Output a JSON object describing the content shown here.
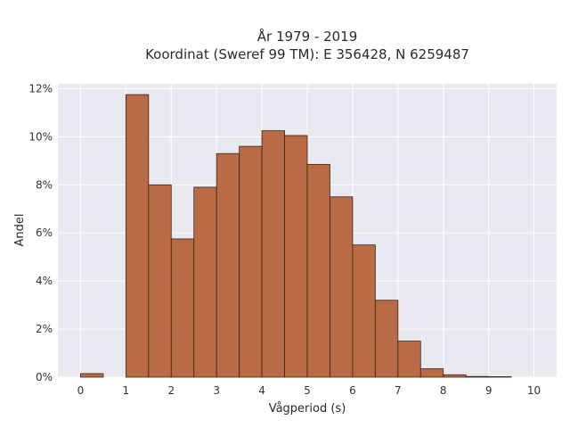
{
  "chart_data": {
    "type": "bar",
    "title": "År 1979 - 2019",
    "subtitle": "Koordinat (Sweref 99 TM): E 356428, N 6259487",
    "xlabel": "Vågperiod (s)",
    "ylabel": "Andel",
    "bin_width": 0.5,
    "bin_starts": [
      0,
      0.5,
      1,
      1.5,
      2,
      2.5,
      3,
      3.5,
      4,
      4.5,
      5,
      5.5,
      6,
      6.5,
      7,
      7.5,
      8,
      8.5,
      9,
      9.5
    ],
    "values": [
      0.15,
      0,
      11.75,
      8.0,
      5.75,
      7.9,
      9.3,
      9.6,
      10.25,
      10.05,
      8.85,
      7.5,
      5.5,
      3.2,
      1.5,
      0.35,
      0.1,
      0.03,
      0.02,
      0
    ],
    "xlim": [
      -0.5,
      10.5
    ],
    "ylim": [
      0,
      12.2
    ],
    "xticks": [
      "0",
      "1",
      "2",
      "3",
      "4",
      "5",
      "6",
      "7",
      "8",
      "9",
      "10"
    ],
    "yticks": [
      "0%",
      "2%",
      "4%",
      "6%",
      "8%",
      "10%",
      "12%"
    ],
    "ytick_values": [
      0,
      2,
      4,
      6,
      8,
      10,
      12
    ],
    "grid": true,
    "colors": {
      "bar_fill": "#b5643a",
      "bar_edge": "#3a2418",
      "plot_bg": "#e9e9f1",
      "grid": "#ffffff"
    }
  }
}
